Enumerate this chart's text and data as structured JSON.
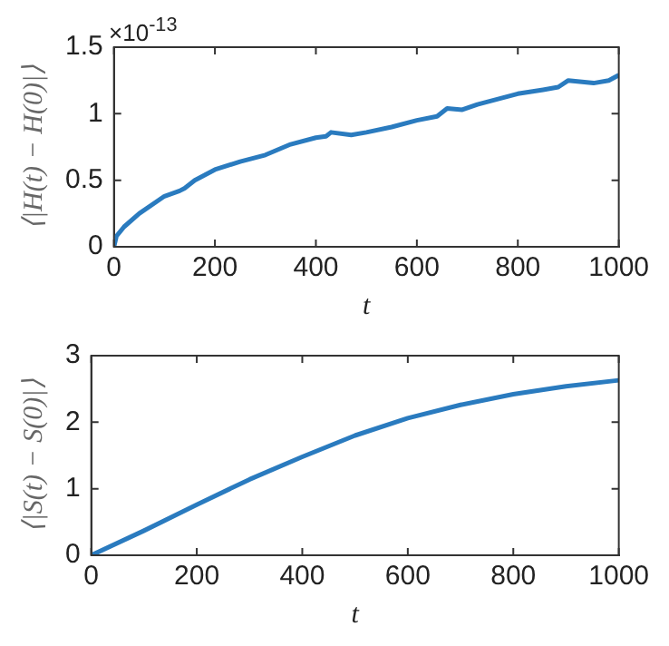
{
  "chart_data": [
    {
      "type": "line",
      "xlabel": "t",
      "ylabel": "⟨|H(t) − H(0)|⟩",
      "annotations": [
        "×10$^{-13}$"
      ],
      "x": [
        0,
        5,
        20,
        50,
        100,
        130,
        140,
        160,
        200,
        250,
        300,
        350,
        400,
        420,
        430,
        470,
        500,
        550,
        600,
        640,
        660,
        690,
        720,
        800,
        850,
        880,
        900,
        950,
        980,
        1000
      ],
      "series": [
        {
          "color": "#2a7bbf",
          "values": [
            0,
            0.08,
            0.15,
            0.25,
            0.38,
            0.42,
            0.44,
            0.5,
            0.58,
            0.64,
            0.69,
            0.77,
            0.82,
            0.83,
            0.86,
            0.84,
            0.86,
            0.9,
            0.95,
            0.98,
            1.04,
            1.03,
            1.07,
            1.15,
            1.18,
            1.2,
            1.25,
            1.23,
            1.25,
            1.29
          ]
        }
      ],
      "xlim": [
        0,
        1000
      ],
      "xticks": [
        0,
        200,
        400,
        600,
        800,
        1000
      ],
      "ylim": [
        0,
        1.5
      ],
      "yticks": [
        0,
        0.5,
        1,
        1.5
      ],
      "grid": false,
      "legend": false,
      "marker": "none",
      "line_style": "solid"
    },
    {
      "type": "line",
      "xlabel": "t",
      "ylabel": "⟨|S(t) − S(0)|⟩",
      "x": [
        0,
        100,
        200,
        300,
        400,
        500,
        600,
        700,
        800,
        900,
        1000
      ],
      "series": [
        {
          "color": "#2a7bbf",
          "values": [
            0,
            0.37,
            0.76,
            1.14,
            1.48,
            1.8,
            2.06,
            2.26,
            2.42,
            2.54,
            2.63
          ]
        }
      ],
      "xlim": [
        0,
        1000
      ],
      "xticks": [
        0,
        200,
        400,
        600,
        800,
        1000
      ],
      "ylim": [
        0,
        3
      ],
      "yticks": [
        0,
        1,
        2,
        3
      ],
      "grid": false,
      "legend": false,
      "marker": "none",
      "line_style": "solid"
    }
  ]
}
